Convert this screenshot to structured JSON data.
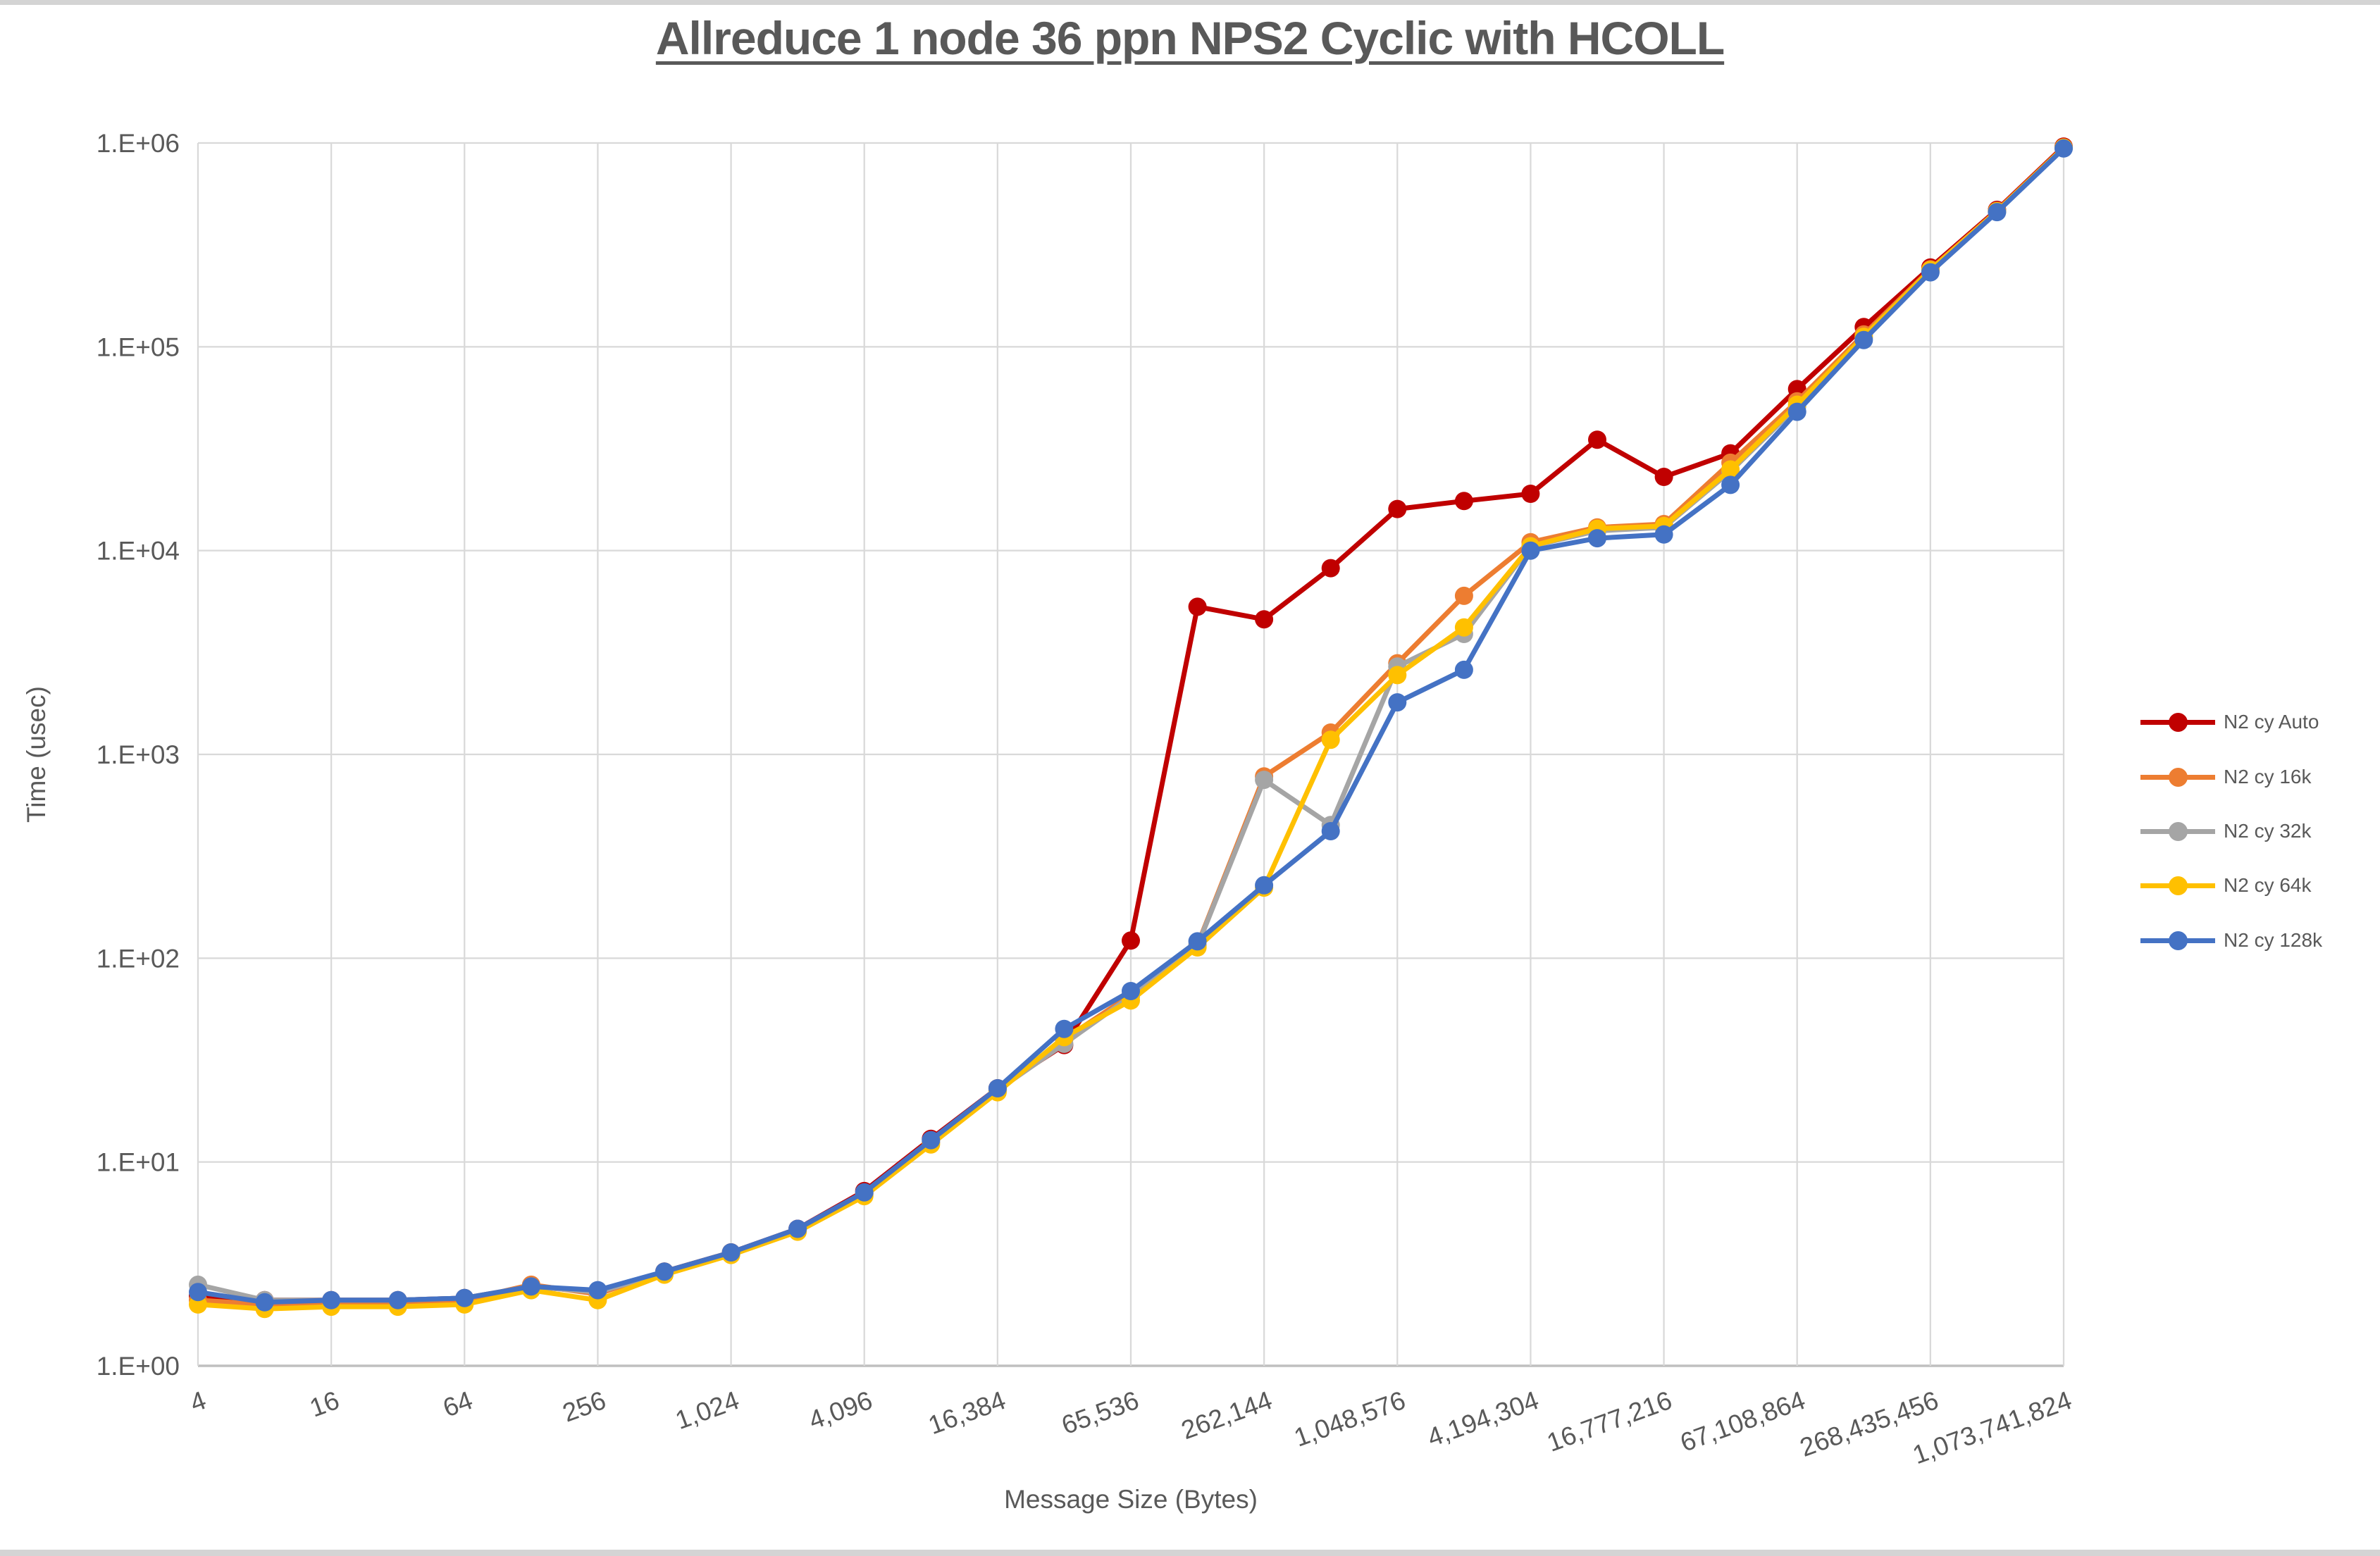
{
  "window": {
    "background": "#ffffff",
    "top_strip_color": "#d4d4d4",
    "bottom_strip_color": "#d4d4d4"
  },
  "title": {
    "text": "Allreduce 1 node 36 ppn NPS2 Cyclic with HCOLL",
    "color": "#595959"
  },
  "axes": {
    "y": {
      "title": "Time (usec)",
      "scale": "log10",
      "min_label": "1.E+00",
      "max_label": "1.E+06",
      "tick_labels": [
        "1.E+00",
        "1.E+01",
        "1.E+02",
        "1.E+03",
        "1.E+04",
        "1.E+05",
        "1.E+06"
      ]
    },
    "x": {
      "title": "Message Size (Bytes)",
      "scale": "log",
      "tick_labels": [
        "4",
        "16",
        "64",
        "256",
        "1,024",
        "4,096",
        "16,384",
        "65,536",
        "262,144",
        "1,048,576",
        "4,194,304",
        "16,777,216",
        "67,108,864",
        "268,435,456",
        "1,073,741,824"
      ],
      "tick_values": [
        4,
        16,
        64,
        256,
        1024,
        4096,
        16384,
        65536,
        262144,
        1048576,
        4194304,
        16777216,
        67108864,
        268435456,
        1073741824
      ]
    }
  },
  "legend": {
    "position": "right",
    "items": [
      {
        "label": "N2 cy Auto",
        "color": "#C00000"
      },
      {
        "label": "N2 cy 16k",
        "color": "#ED7D31"
      },
      {
        "label": "N2 cy 32k",
        "color": "#A5A5A5"
      },
      {
        "label": "N2 cy 64k",
        "color": "#FFC000"
      },
      {
        "label": "N2 cy 128k",
        "color": "#4472C4"
      }
    ]
  },
  "style_colors": {
    "gridline": "#D9D9D9",
    "axis_line": "#BFBFBF",
    "text": "#595959"
  },
  "chart_data": {
    "type": "line",
    "title": "Allreduce 1 node 36 ppn NPS2 Cyclic with HCOLL",
    "xlabel": "Message Size (Bytes)",
    "ylabel": "Time (usec)",
    "x_scale": "log",
    "y_scale": "log",
    "xlim": [
      4,
      1073741824
    ],
    "ylim": [
      1,
      1000000
    ],
    "grid": true,
    "legend_position": "right",
    "x": [
      4,
      8,
      16,
      32,
      64,
      128,
      256,
      512,
      1024,
      2048,
      4096,
      8192,
      16384,
      32768,
      65536,
      131072,
      262144,
      524288,
      1048576,
      2097152,
      4194304,
      8388608,
      16777216,
      33554432,
      67108864,
      134217728,
      268435456,
      536870912,
      1073741824
    ],
    "series": [
      {
        "name": "N2 cy Auto",
        "color": "#C00000",
        "values": [
          2.2,
          2.1,
          2.1,
          2.1,
          2.15,
          2.45,
          2.3,
          2.9,
          3.6,
          4.7,
          7.2,
          13,
          23,
          37.5,
          122,
          5300,
          4600,
          8200,
          16000,
          17500,
          19000,
          35000,
          23000,
          30000,
          62000,
          125000,
          245000,
          470000,
          960000
        ]
      },
      {
        "name": "N2 cy 16k",
        "color": "#ED7D31",
        "values": [
          2.1,
          2.0,
          2.0,
          2.0,
          2.1,
          2.5,
          2.25,
          2.9,
          3.6,
          4.65,
          7.0,
          12.5,
          22.5,
          40,
          66,
          116,
          780,
          1280,
          2800,
          6000,
          11000,
          13000,
          13500,
          27000,
          54000,
          115000,
          240000,
          465000,
          950000
        ]
      },
      {
        "name": "N2 cy 32k",
        "color": "#A5A5A5",
        "values": [
          2.5,
          2.1,
          2.1,
          2.1,
          2.15,
          2.45,
          2.3,
          2.85,
          3.55,
          4.6,
          6.9,
          12.5,
          22.5,
          38,
          65,
          115,
          750,
          450,
          2700,
          3900,
          10500,
          12500,
          13000,
          24500,
          51000,
          110000,
          235000,
          461000,
          945000
        ]
      },
      {
        "name": "N2 cy 64k",
        "color": "#FFC000",
        "values": [
          2.0,
          1.9,
          1.95,
          1.95,
          2.0,
          2.35,
          2.1,
          2.8,
          3.5,
          4.55,
          6.8,
          12.2,
          22,
          41,
          62,
          113,
          222,
          1180,
          2450,
          4200,
          10500,
          12800,
          13200,
          25000,
          52000,
          112000,
          238000,
          462000,
          948000
        ]
      },
      {
        "name": "N2 cy 128k",
        "color": "#4472C4",
        "values": [
          2.3,
          2.05,
          2.1,
          2.1,
          2.15,
          2.45,
          2.35,
          2.9,
          3.6,
          4.7,
          7.1,
          12.8,
          23,
          45,
          69,
          121,
          228,
          420,
          1800,
          2600,
          10000,
          11500,
          12000,
          21000,
          48000,
          108000,
          232000,
          458000,
          940000
        ]
      }
    ]
  }
}
